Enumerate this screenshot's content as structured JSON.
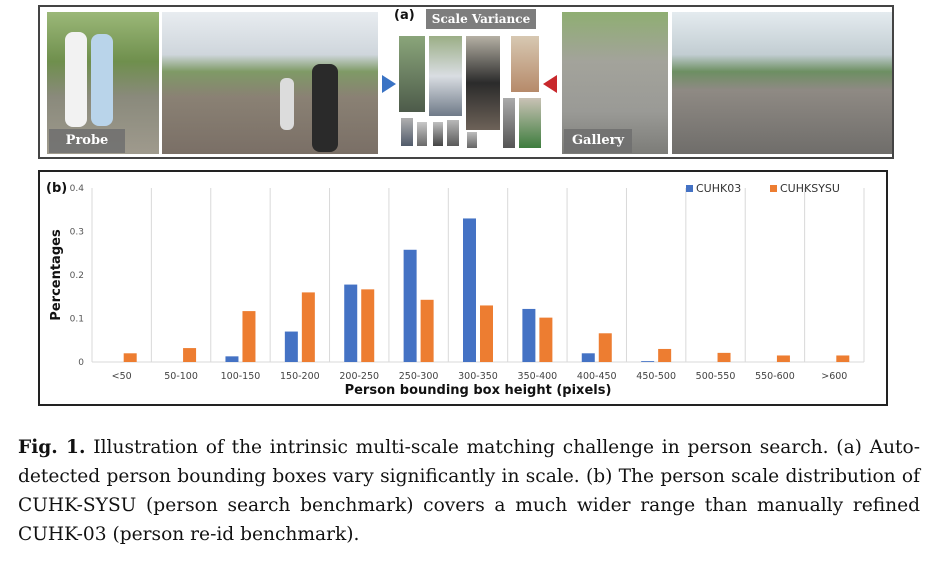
{
  "panel_a": {
    "marker": "(a)",
    "title": "Scale Variance",
    "probe_label": "Probe",
    "gallery_label": "Gallery",
    "colors": {
      "left_arrow": "#3a73c4",
      "right_arrow": "#c8282c"
    }
  },
  "caption": {
    "fig_label": "Fig. 1.",
    "text": "Illustration of the intrinsic multi-scale matching challenge in person search. (a) Auto-detected person bounding boxes vary significantly in scale. (b) The person scale distribution of CUHK-SYSU (person search benchmark) covers a much wider range than manually refined CUHK-03 (person re-id benchmark)."
  },
  "chart_data": {
    "type": "bar",
    "marker": "(b)",
    "title": "",
    "xlabel": "Person bounding box height (pixels)",
    "ylabel": "Percentages",
    "ylim": [
      0,
      0.4
    ],
    "yticks": [
      "0",
      "0.1",
      "0.2",
      "0.3",
      "0.4"
    ],
    "categories": [
      "<50",
      "50-100",
      "100-150",
      "150-200",
      "200-250",
      "250-300",
      "300-350",
      "350-400",
      "400-450",
      "450-500",
      "500-550",
      "550-600",
      ">600"
    ],
    "grid": "vertical",
    "legend": "top-right",
    "series": [
      {
        "name": "CUHK03",
        "color": "#4472c4",
        "values": [
          0,
          0,
          0.013,
          0.07,
          0.178,
          0.258,
          0.33,
          0.122,
          0.02,
          0.002,
          0,
          0,
          0
        ]
      },
      {
        "name": "CUHKSYSU",
        "color": "#ed7d31",
        "values": [
          0.02,
          0.032,
          0.117,
          0.16,
          0.167,
          0.143,
          0.13,
          0.102,
          0.066,
          0.03,
          0.021,
          0.015,
          0.015
        ]
      }
    ]
  }
}
